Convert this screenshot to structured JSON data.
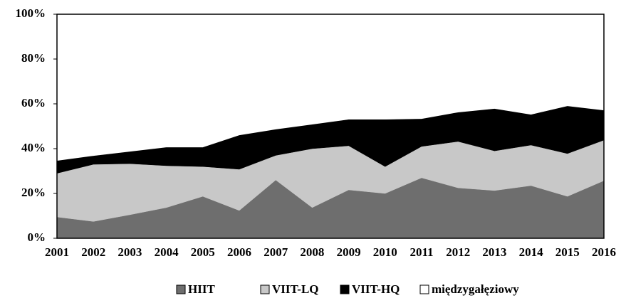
{
  "chart_data": {
    "type": "stacked_area",
    "categories": [
      "2001",
      "2002",
      "2003",
      "2004",
      "2005",
      "2006",
      "2007",
      "2008",
      "2009",
      "2010",
      "2011",
      "2012",
      "2013",
      "2014",
      "2015",
      "2016"
    ],
    "series": [
      {
        "name": "HIIT",
        "color": "#6e6e6e",
        "values": [
          9.5,
          7.5,
          10.5,
          13.7,
          18.7,
          12.4,
          26,
          13.7,
          21.6,
          20,
          27,
          22.5,
          21.3,
          23.5,
          18.7,
          25.7
        ]
      },
      {
        "name": "VIIT-LQ",
        "color": "#c8c8c8",
        "values": [
          19.5,
          25.5,
          22.8,
          18.7,
          13.3,
          18.4,
          11,
          26.3,
          19.7,
          12,
          14,
          20.7,
          17.7,
          18.1,
          19.1,
          18.1
        ]
      },
      {
        "name": "VIIT-HQ",
        "color": "#000000",
        "values": [
          5.6,
          3.8,
          5.4,
          8.2,
          8.6,
          15.2,
          11.6,
          10.8,
          11.7,
          21,
          12.3,
          13,
          18.8,
          13.6,
          21.2,
          13.3
        ]
      },
      {
        "name": "międzygałęziowy",
        "color": "#ffffff",
        "values": [
          65.4,
          63.2,
          61.3,
          59.4,
          59.4,
          54,
          51.4,
          49.2,
          47,
          47,
          46.7,
          43.8,
          42.2,
          44.8,
          41,
          42.9
        ]
      }
    ],
    "ylim": [
      0,
      100
    ],
    "yticks": [
      {
        "value": 0,
        "label": "0%"
      },
      {
        "value": 20,
        "label": "20%"
      },
      {
        "value": 40,
        "label": "40%"
      },
      {
        "value": 60,
        "label": "60%"
      },
      {
        "value": 80,
        "label": "80%"
      },
      {
        "value": 100,
        "label": "100%"
      }
    ],
    "legend": "bottom"
  }
}
